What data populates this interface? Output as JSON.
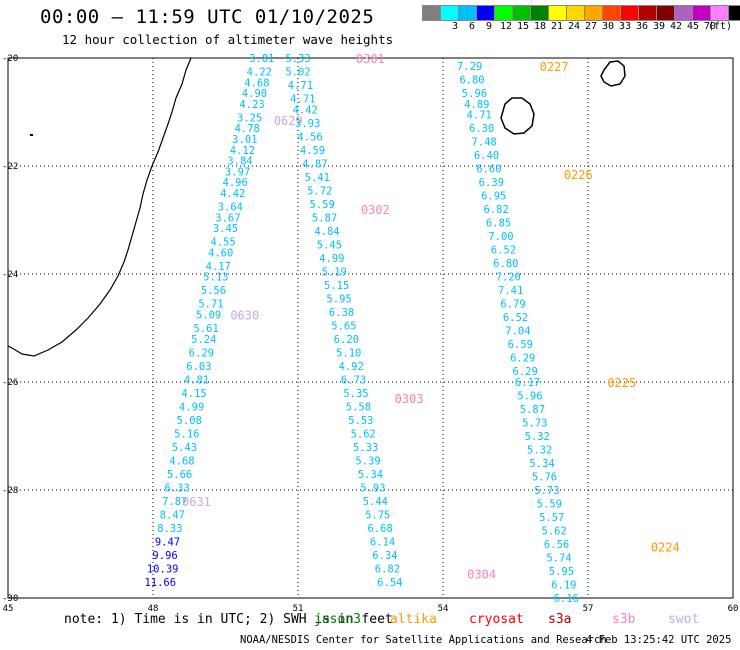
{
  "header": {
    "title": "00:00 – 11:59 UTC 01/10/2025",
    "subtitle": "12 hour collection of altimeter wave heights"
  },
  "legend": {
    "unit": "(ft)",
    "steps": [
      {
        "label": "",
        "color": "#7f7f7f"
      },
      {
        "label": "3",
        "color": "#00ffff"
      },
      {
        "label": "6",
        "color": "#00bfff"
      },
      {
        "label": "9",
        "color": "#0000ff"
      },
      {
        "label": "12",
        "color": "#00ff00"
      },
      {
        "label": "15",
        "color": "#00c000"
      },
      {
        "label": "18",
        "color": "#008000"
      },
      {
        "label": "21",
        "color": "#ffff00"
      },
      {
        "label": "24",
        "color": "#ffd700"
      },
      {
        "label": "27",
        "color": "#ffa500"
      },
      {
        "label": "30",
        "color": "#ff4500"
      },
      {
        "label": "33",
        "color": "#ff0000"
      },
      {
        "label": "36",
        "color": "#b00000"
      },
      {
        "label": "39",
        "color": "#800000"
      },
      {
        "label": "42",
        "color": "#b060c0"
      },
      {
        "label": "45",
        "color": "#c000c0"
      },
      {
        "label": "70",
        "color": "#ff80ff"
      },
      {
        "label": "",
        "color": "#000000"
      }
    ]
  },
  "map": {
    "lon_range": [
      45,
      60
    ],
    "lat_range": [
      -30,
      -20
    ],
    "lon_ticks": [
      "45",
      "48",
      "51",
      "54",
      "57",
      "60"
    ],
    "lat_ticks": [
      "-20",
      "-22",
      "-24",
      "-26",
      "-28",
      "-30"
    ],
    "grid": "dotted",
    "tracks": [
      {
        "satellite": "swot",
        "color": "#c8a8e8",
        "labels": [
          {
            "text": "0629",
            "lon": 50.5,
            "lat": -21.15
          },
          {
            "text": "0630",
            "lon": 49.6,
            "lat": -24.75
          },
          {
            "text": "0631",
            "lon": 48.6,
            "lat": -28.2
          }
        ],
        "values": [
          {
            "v": "3.81",
            "lon": 50.25,
            "lat": -20.0
          },
          {
            "v": "4.22",
            "lon": 50.2,
            "lat": -20.25
          },
          {
            "v": "4.68",
            "lon": 50.15,
            "lat": -20.45
          },
          {
            "v": "4.90",
            "lon": 50.1,
            "lat": -20.65
          },
          {
            "v": "4.23",
            "lon": 50.05,
            "lat": -20.85
          },
          {
            "v": "3.25",
            "lon": 50.0,
            "lat": -21.1
          },
          {
            "v": "4.78",
            "lon": 49.95,
            "lat": -21.3
          },
          {
            "v": "3.01",
            "lon": 49.9,
            "lat": -21.5
          },
          {
            "v": "4.12",
            "lon": 49.85,
            "lat": -21.7
          },
          {
            "v": "3.84",
            "lon": 49.8,
            "lat": -21.9
          },
          {
            "v": "3.97",
            "lon": 49.75,
            "lat": -22.1
          },
          {
            "v": "4.96",
            "lon": 49.7,
            "lat": -22.3
          },
          {
            "v": "4.42",
            "lon": 49.65,
            "lat": -22.5
          },
          {
            "v": "3.64",
            "lon": 49.6,
            "lat": -22.75
          },
          {
            "v": "3.67",
            "lon": 49.55,
            "lat": -22.95
          },
          {
            "v": "3.45",
            "lon": 49.5,
            "lat": -23.15
          },
          {
            "v": "4.55",
            "lon": 49.45,
            "lat": -23.4
          },
          {
            "v": "4.60",
            "lon": 49.4,
            "lat": -23.6
          },
          {
            "v": "4.17",
            "lon": 49.35,
            "lat": -23.85
          },
          {
            "v": "5.13",
            "lon": 49.3,
            "lat": -24.05
          },
          {
            "v": "5.56",
            "lon": 49.25,
            "lat": -24.3
          },
          {
            "v": "5.71",
            "lon": 49.2,
            "lat": -24.55
          },
          {
            "v": "5.09",
            "lon": 49.15,
            "lat": -24.75
          },
          {
            "v": "5.61",
            "lon": 49.1,
            "lat": -25.0
          },
          {
            "v": "5.24",
            "lon": 49.05,
            "lat": -25.2
          },
          {
            "v": "6.29",
            "lon": 49.0,
            "lat": -25.45
          },
          {
            "v": "6.03",
            "lon": 48.95,
            "lat": -25.7
          },
          {
            "v": "4.81",
            "lon": 48.9,
            "lat": -25.95
          },
          {
            "v": "4.15",
            "lon": 48.85,
            "lat": -26.2
          },
          {
            "v": "4.99",
            "lon": 48.8,
            "lat": -26.45
          },
          {
            "v": "5.08",
            "lon": 48.75,
            "lat": -26.7
          },
          {
            "v": "5.16",
            "lon": 48.7,
            "lat": -26.95
          },
          {
            "v": "5.43",
            "lon": 48.65,
            "lat": -27.2
          },
          {
            "v": "4.68",
            "lon": 48.6,
            "lat": -27.45
          },
          {
            "v": "5.66",
            "lon": 48.55,
            "lat": -27.7
          },
          {
            "v": "6.33",
            "lon": 48.5,
            "lat": -27.95
          },
          {
            "v": "7.87",
            "lon": 48.45,
            "lat": -28.2
          },
          {
            "v": "8.47",
            "lon": 48.4,
            "lat": -28.45
          },
          {
            "v": "8.33",
            "lon": 48.35,
            "lat": -28.7
          },
          {
            "v": "9.47",
            "lon": 48.3,
            "lat": -28.95
          },
          {
            "v": "9.96",
            "lon": 48.25,
            "lat": -29.2
          },
          {
            "v": "10.39",
            "lon": 48.2,
            "lat": -29.45
          },
          {
            "v": "11.66",
            "lon": 48.15,
            "lat": -29.7
          }
        ]
      },
      {
        "satellite": "s3b",
        "color": "#ff80c0",
        "labels": [
          {
            "text": "0301",
            "lon": 52.2,
            "lat": -20.0
          },
          {
            "text": "0302",
            "lon": 52.3,
            "lat": -22.8
          },
          {
            "text": "0303",
            "lon": 53.0,
            "lat": -26.3
          },
          {
            "text": "0304",
            "lon": 54.5,
            "lat": -29.55
          }
        ],
        "values": [
          {
            "v": "5.33",
            "lon": 51.0,
            "lat": -20.0
          },
          {
            "v": "5.02",
            "lon": 51.0,
            "lat": -20.25
          },
          {
            "v": "4.71",
            "lon": 51.05,
            "lat": -20.5
          },
          {
            "v": "4.71",
            "lon": 51.1,
            "lat": -20.75
          },
          {
            "v": "4.42",
            "lon": 51.15,
            "lat": -20.95
          },
          {
            "v": "3.93",
            "lon": 51.2,
            "lat": -21.2
          },
          {
            "v": "4.56",
            "lon": 51.25,
            "lat": -21.45
          },
          {
            "v": "4.59",
            "lon": 51.3,
            "lat": -21.7
          },
          {
            "v": "4.87",
            "lon": 51.35,
            "lat": -21.95
          },
          {
            "v": "5.41",
            "lon": 51.4,
            "lat": -22.2
          },
          {
            "v": "5.72",
            "lon": 51.45,
            "lat": -22.45
          },
          {
            "v": "5.59",
            "lon": 51.5,
            "lat": -22.7
          },
          {
            "v": "5.87",
            "lon": 51.55,
            "lat": -22.95
          },
          {
            "v": "4.84",
            "lon": 51.6,
            "lat": -23.2
          },
          {
            "v": "5.45",
            "lon": 51.65,
            "lat": -23.45
          },
          {
            "v": "4.99",
            "lon": 51.7,
            "lat": -23.7
          },
          {
            "v": "5.19",
            "lon": 51.75,
            "lat": -23.95
          },
          {
            "v": "5.15",
            "lon": 51.8,
            "lat": -24.2
          },
          {
            "v": "5.95",
            "lon": 51.85,
            "lat": -24.45
          },
          {
            "v": "6.38",
            "lon": 51.9,
            "lat": -24.7
          },
          {
            "v": "5.65",
            "lon": 51.95,
            "lat": -24.95
          },
          {
            "v": "6.20",
            "lon": 52.0,
            "lat": -25.2
          },
          {
            "v": "5.10",
            "lon": 52.05,
            "lat": -25.45
          },
          {
            "v": "4.92",
            "lon": 52.1,
            "lat": -25.7
          },
          {
            "v": "6.73",
            "lon": 52.15,
            "lat": -25.95
          },
          {
            "v": "5.35",
            "lon": 52.2,
            "lat": -26.2
          },
          {
            "v": "5.58",
            "lon": 52.25,
            "lat": -26.45
          },
          {
            "v": "5.53",
            "lon": 52.3,
            "lat": -26.7
          },
          {
            "v": "5.62",
            "lon": 52.35,
            "lat": -26.95
          },
          {
            "v": "5.33",
            "lon": 52.4,
            "lat": -27.2
          },
          {
            "v": "5.39",
            "lon": 52.45,
            "lat": -27.45
          },
          {
            "v": "5.34",
            "lon": 52.5,
            "lat": -27.7
          },
          {
            "v": "5.93",
            "lon": 52.55,
            "lat": -27.95
          },
          {
            "v": "5.44",
            "lon": 52.6,
            "lat": -28.2
          },
          {
            "v": "5.75",
            "lon": 52.65,
            "lat": -28.45
          },
          {
            "v": "6.68",
            "lon": 52.7,
            "lat": -28.7
          },
          {
            "v": "6.14",
            "lon": 52.75,
            "lat": -28.95
          },
          {
            "v": "6.34",
            "lon": 52.8,
            "lat": -29.2
          },
          {
            "v": "6.82",
            "lon": 52.85,
            "lat": -29.45
          },
          {
            "v": "6.54",
            "lon": 52.9,
            "lat": -29.7
          }
        ]
      },
      {
        "satellite": "altika",
        "color": "#ff9900",
        "labels": [
          {
            "text": "0227",
            "lon": 56.0,
            "lat": -20.15
          },
          {
            "text": "0226",
            "lon": 56.5,
            "lat": -22.15
          },
          {
            "text": "0225",
            "lon": 57.4,
            "lat": -26.0
          },
          {
            "text": "0224",
            "lon": 58.3,
            "lat": -29.05
          }
        ],
        "values": [
          {
            "v": "7.29",
            "lon": 54.55,
            "lat": -20.15
          },
          {
            "v": "6.80",
            "lon": 54.6,
            "lat": -20.4
          },
          {
            "v": "5.96",
            "lon": 54.65,
            "lat": -20.65
          },
          {
            "v": "4.89",
            "lon": 54.7,
            "lat": -20.85
          },
          {
            "v": "4.71",
            "lon": 54.75,
            "lat": -21.05
          },
          {
            "v": "6.30",
            "lon": 54.8,
            "lat": -21.3
          },
          {
            "v": "7.48",
            "lon": 54.85,
            "lat": -21.55
          },
          {
            "v": "6.40",
            "lon": 54.9,
            "lat": -21.8
          },
          {
            "v": "6.60",
            "lon": 54.95,
            "lat": -22.05
          },
          {
            "v": "6.39",
            "lon": 55.0,
            "lat": -22.3
          },
          {
            "v": "6.95",
            "lon": 55.05,
            "lat": -22.55
          },
          {
            "v": "6.82",
            "lon": 55.1,
            "lat": -22.8
          },
          {
            "v": "6.85",
            "lon": 55.15,
            "lat": -23.05
          },
          {
            "v": "7.00",
            "lon": 55.2,
            "lat": -23.3
          },
          {
            "v": "6.52",
            "lon": 55.25,
            "lat": -23.55
          },
          {
            "v": "6.80",
            "lon": 55.3,
            "lat": -23.8
          },
          {
            "v": "7.20",
            "lon": 55.35,
            "lat": -24.05
          },
          {
            "v": "7.41",
            "lon": 55.4,
            "lat": -24.3
          },
          {
            "v": "6.79",
            "lon": 55.45,
            "lat": -24.55
          },
          {
            "v": "6.52",
            "lon": 55.5,
            "lat": -24.8
          },
          {
            "v": "7.04",
            "lon": 55.55,
            "lat": -25.05
          },
          {
            "v": "6.59",
            "lon": 55.6,
            "lat": -25.3
          },
          {
            "v": "6.29",
            "lon": 55.65,
            "lat": -25.55
          },
          {
            "v": "6.29",
            "lon": 55.7,
            "lat": -25.8
          },
          {
            "v": "6.17",
            "lon": 55.75,
            "lat": -26.0
          },
          {
            "v": "5.96",
            "lon": 55.8,
            "lat": -26.25
          },
          {
            "v": "5.87",
            "lon": 55.85,
            "lat": -26.5
          },
          {
            "v": "5.73",
            "lon": 55.9,
            "lat": -26.75
          },
          {
            "v": "5.32",
            "lon": 55.95,
            "lat": -27.0
          },
          {
            "v": "5.32",
            "lon": 56.0,
            "lat": -27.25
          },
          {
            "v": "5.34",
            "lon": 56.05,
            "lat": -27.5
          },
          {
            "v": "5.76",
            "lon": 56.1,
            "lat": -27.75
          },
          {
            "v": "5.73",
            "lon": 56.15,
            "lat": -28.0
          },
          {
            "v": "5.59",
            "lon": 56.2,
            "lat": -28.25
          },
          {
            "v": "5.57",
            "lon": 56.25,
            "lat": -28.5
          },
          {
            "v": "5.62",
            "lon": 56.3,
            "lat": -28.75
          },
          {
            "v": "6.56",
            "lon": 56.35,
            "lat": -29.0
          },
          {
            "v": "5.74",
            "lon": 56.4,
            "lat": -29.25
          },
          {
            "v": "5.95",
            "lon": 56.45,
            "lat": -29.5
          },
          {
            "v": "6.19",
            "lon": 56.5,
            "lat": -29.75
          },
          {
            "v": "6.16",
            "lon": 56.55,
            "lat": -30.0
          }
        ]
      }
    ]
  },
  "notes": {
    "note": "note: 1) Time is in UTC; 2) SWH is in feet"
  },
  "satellites": [
    {
      "name": "jason3",
      "color": "#008000"
    },
    {
      "name": "altika",
      "color": "#ff9900"
    },
    {
      "name": "cryosat",
      "color": "#ff0000"
    },
    {
      "name": "s3a",
      "color": "#b00000"
    },
    {
      "name": "s3b",
      "color": "#ff80c0"
    },
    {
      "name": "swot",
      "color": "#c8a8e8"
    }
  ],
  "footer": {
    "org": "NOAA/NESDIS Center for Satellite Applications and Research",
    "date": "4 Feb 13:25:42 UTC 2025"
  }
}
